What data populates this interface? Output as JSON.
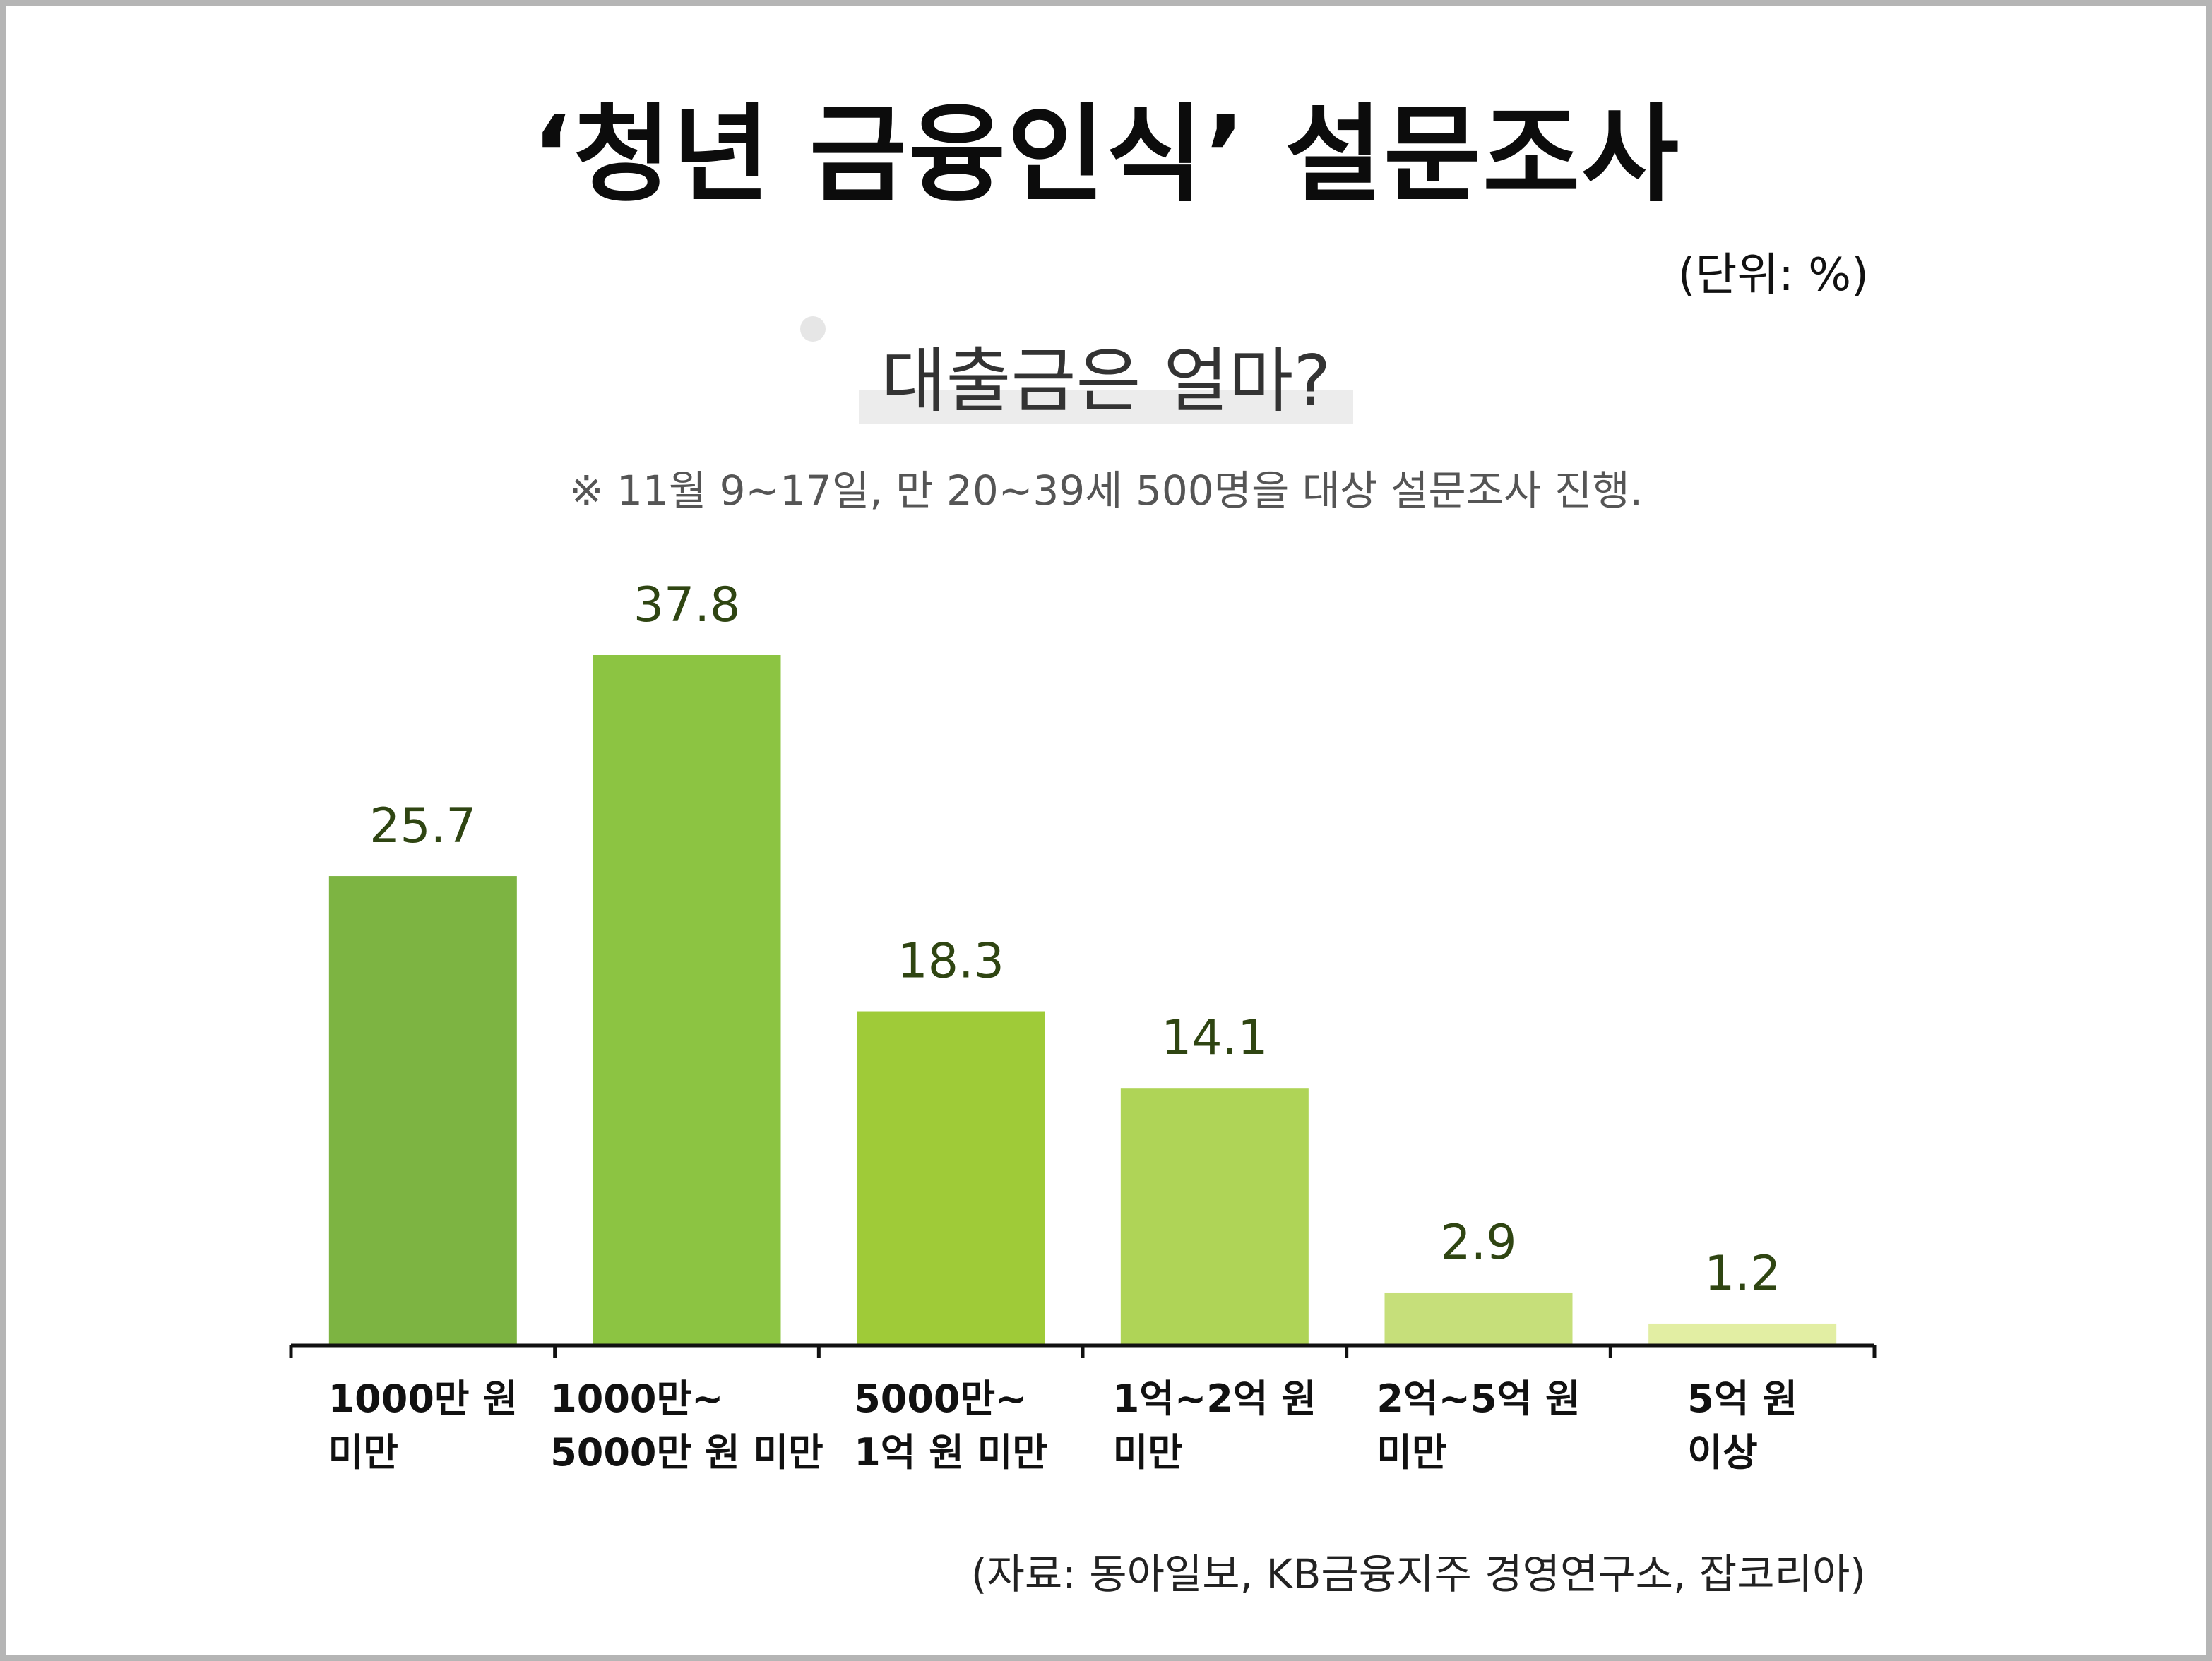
{
  "header": {
    "title": "‘청년 금융인식’ 설문조사",
    "unit": "(단위: %)",
    "subtitle": "대출금은 얼마?",
    "note": "※ 11월 9~17일, 만 20~39세 500명을 대상 설문조사 진행."
  },
  "footer": {
    "source": "(자료: 동아일보, KB금융지주 경영연구소, 잡코리아)"
  },
  "chart_data": {
    "type": "bar",
    "title": "대출금은 얼마?",
    "categories": [
      [
        "1000만 원",
        "미만"
      ],
      [
        "1000만~",
        "5000만 원 미만"
      ],
      [
        "5000만~",
        "1억 원 미만"
      ],
      [
        "1억~2억 원",
        "미만"
      ],
      [
        "2억~5억 원",
        "미만"
      ],
      [
        "5억 원",
        "이상"
      ]
    ],
    "values": [
      25.7,
      37.8,
      18.3,
      14.1,
      2.9,
      1.2
    ],
    "value_labels": [
      "25.7",
      "37.8",
      "18.3",
      "14.1",
      "2.9",
      "1.2"
    ],
    "bar_colors": [
      "#7db442",
      "#8cc442",
      "#9fcb38",
      "#afd457",
      "#c6df7a",
      "#e2eea3"
    ],
    "xlabel": "",
    "ylabel": "",
    "ylim": [
      0,
      37.8
    ],
    "grid": false,
    "legend": "none"
  }
}
